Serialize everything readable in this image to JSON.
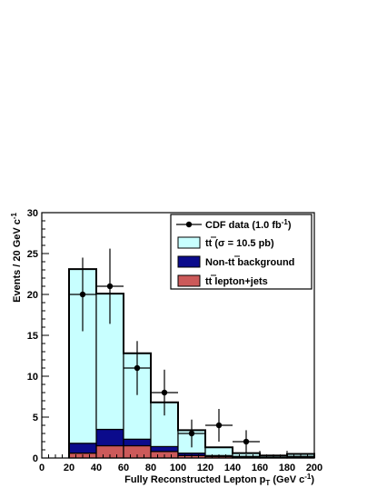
{
  "chart_data": {
    "type": "bar",
    "xlabel": "Fully Reconstructed Lepton p",
    "xlabel_sub": "T",
    "xlabel_unit": " (GeV c",
    "xlabel_unit_sup": "-1",
    "xlabel_unit_close": ")",
    "ylabel": "Events / 20 GeV c",
    "ylabel_sup": "-1",
    "xlim": [
      0,
      200
    ],
    "ylim": [
      0,
      30
    ],
    "x_ticks": [
      0,
      20,
      40,
      60,
      80,
      100,
      120,
      140,
      160,
      180,
      200
    ],
    "y_ticks": [
      0,
      5,
      10,
      15,
      20,
      25,
      30
    ],
    "bin_edges": [
      20,
      40,
      60,
      80,
      100,
      120,
      140,
      160,
      180,
      200
    ],
    "stack": [
      {
        "key": "lepjets",
        "values": [
          0.6,
          1.5,
          1.5,
          0.8,
          0.3,
          0.2,
          0.1,
          0.1,
          0.1
        ],
        "color": "#cc5a5a"
      },
      {
        "key": "nontt",
        "values": [
          1.2,
          2.0,
          0.8,
          0.6,
          0.3,
          0.1,
          0.1,
          0.0,
          0.1
        ],
        "color": "#0b0b8c"
      },
      {
        "key": "ttbar",
        "values": [
          21.3,
          16.6,
          10.5,
          5.4,
          2.8,
          1.0,
          0.4,
          0.2,
          0.3
        ],
        "color": "#c8ffff"
      }
    ],
    "data_points": [
      {
        "x": 30,
        "y": 20,
        "err": 4.5
      },
      {
        "x": 50,
        "y": 21,
        "err": 4.6
      },
      {
        "x": 70,
        "y": 11,
        "err": 3.3
      },
      {
        "x": 90,
        "y": 8,
        "err": 2.8
      },
      {
        "x": 110,
        "y": 3,
        "err": 1.7
      },
      {
        "x": 130,
        "y": 4,
        "err": 2.0
      },
      {
        "x": 150,
        "y": 2,
        "err": 1.4
      }
    ],
    "legend_placement": "top-right",
    "legend": {
      "data": {
        "text": "CDF data (1.0 fb",
        "sup": "-1",
        "close": ")"
      },
      "ttbar": {
        "pre": "tt",
        "post": " (σ = 10.5 pb)"
      },
      "nontt": {
        "pre": "Non-",
        "tt": "tt",
        "post": " background"
      },
      "lepjets": {
        "tt": "tt",
        "post": " lepton+jets"
      }
    }
  }
}
